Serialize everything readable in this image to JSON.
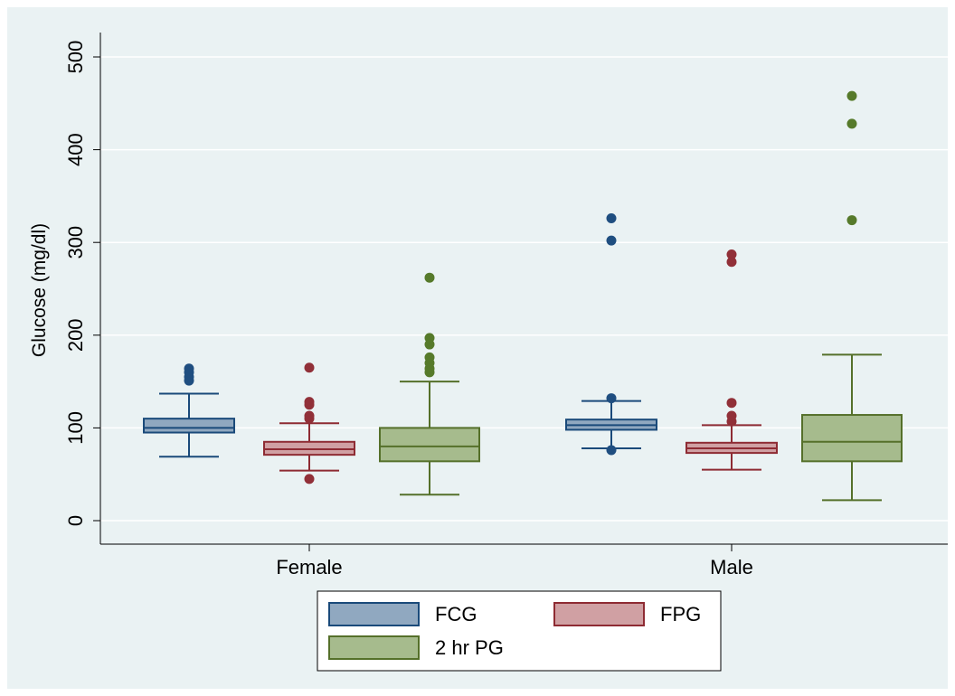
{
  "chart_data": {
    "type": "box",
    "title": "",
    "ylabel": "Glucose (mg/dl)",
    "xlabel": "",
    "ylim": [
      -25,
      525
    ],
    "yticks": [
      0,
      100,
      200,
      300,
      400,
      500
    ],
    "ytick_labels": [
      "0",
      "100",
      "200",
      "300",
      "400",
      "500"
    ],
    "grid": true,
    "legend_position": "bottom",
    "categories": [
      "Female",
      "Male"
    ],
    "series": [
      {
        "name": "FCG",
        "fill": "#90a8c0",
        "stroke": "#1a4a7a",
        "dot": "#1f4e80",
        "groups": [
          {
            "category": "Female",
            "whisker_low": 69,
            "q1": 95,
            "median": 100,
            "q3": 110,
            "whisker_high": 137,
            "outliers": [
              151,
              155,
              160,
              164
            ]
          },
          {
            "category": "Male",
            "whisker_low": 78,
            "q1": 98,
            "median": 103,
            "q3": 109,
            "whisker_high": 129,
            "outliers": [
              76,
              132,
              302,
              326
            ]
          }
        ]
      },
      {
        "name": "FPG",
        "fill": "#d0a0a3",
        "stroke": "#8e2b33",
        "dot": "#913038",
        "groups": [
          {
            "category": "Female",
            "whisker_low": 54,
            "q1": 71,
            "median": 77,
            "q3": 85,
            "whisker_high": 105,
            "outliers": [
              45,
              110,
              113,
              125,
              128,
              165
            ]
          },
          {
            "category": "Male",
            "whisker_low": 55,
            "q1": 73,
            "median": 78,
            "q3": 84,
            "whisker_high": 103,
            "outliers": [
              107,
              113,
              127,
              279,
              287
            ]
          }
        ]
      },
      {
        "name": "2 hr PG",
        "fill": "#a6bb8d",
        "stroke": "#55702a",
        "dot": "#567a2a",
        "groups": [
          {
            "category": "Female",
            "whisker_low": 28,
            "q1": 64,
            "median": 80,
            "q3": 100,
            "whisker_high": 150,
            "outliers": [
              160,
              164,
              170,
              176,
              190,
              197,
              262
            ]
          },
          {
            "category": "Male",
            "whisker_low": 22,
            "q1": 64,
            "median": 85,
            "q3": 114,
            "whisker_high": 179,
            "outliers": [
              324,
              428,
              458
            ]
          }
        ]
      }
    ]
  }
}
